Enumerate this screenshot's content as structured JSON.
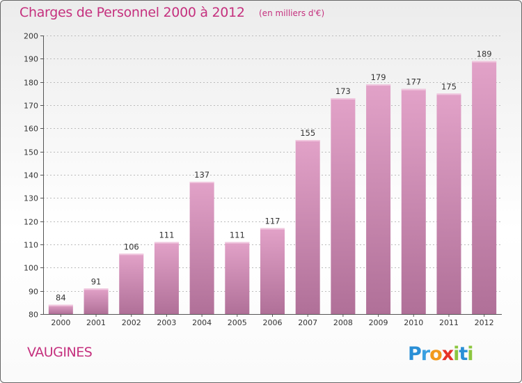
{
  "header": {
    "title": "Charges de Personnel 2000 à 2012",
    "subtitle": "(en milliers d'€)"
  },
  "footer": {
    "commune": "VAUGINES",
    "logo_text": "Proxiti"
  },
  "colors": {
    "bar_light": "#e2a2c8",
    "bar_dark": "#b07098",
    "title": "#c5307e",
    "grid": "#bbbbbb"
  },
  "chart_data": {
    "type": "bar",
    "title": "Charges de Personnel 2000 à 2012",
    "subtitle": "(en milliers d'€)",
    "xlabel": "",
    "ylabel": "",
    "categories": [
      "2000",
      "2001",
      "2002",
      "2003",
      "2004",
      "2005",
      "2006",
      "2007",
      "2008",
      "2009",
      "2010",
      "2011",
      "2012"
    ],
    "values": [
      84,
      91,
      106,
      111,
      137,
      111,
      117,
      155,
      173,
      179,
      177,
      175,
      189
    ],
    "ylim": [
      80,
      200
    ],
    "yticks": [
      80,
      90,
      100,
      110,
      120,
      130,
      140,
      150,
      160,
      170,
      180,
      190,
      200
    ],
    "grid": "horizontal dashed",
    "legend": "none"
  }
}
